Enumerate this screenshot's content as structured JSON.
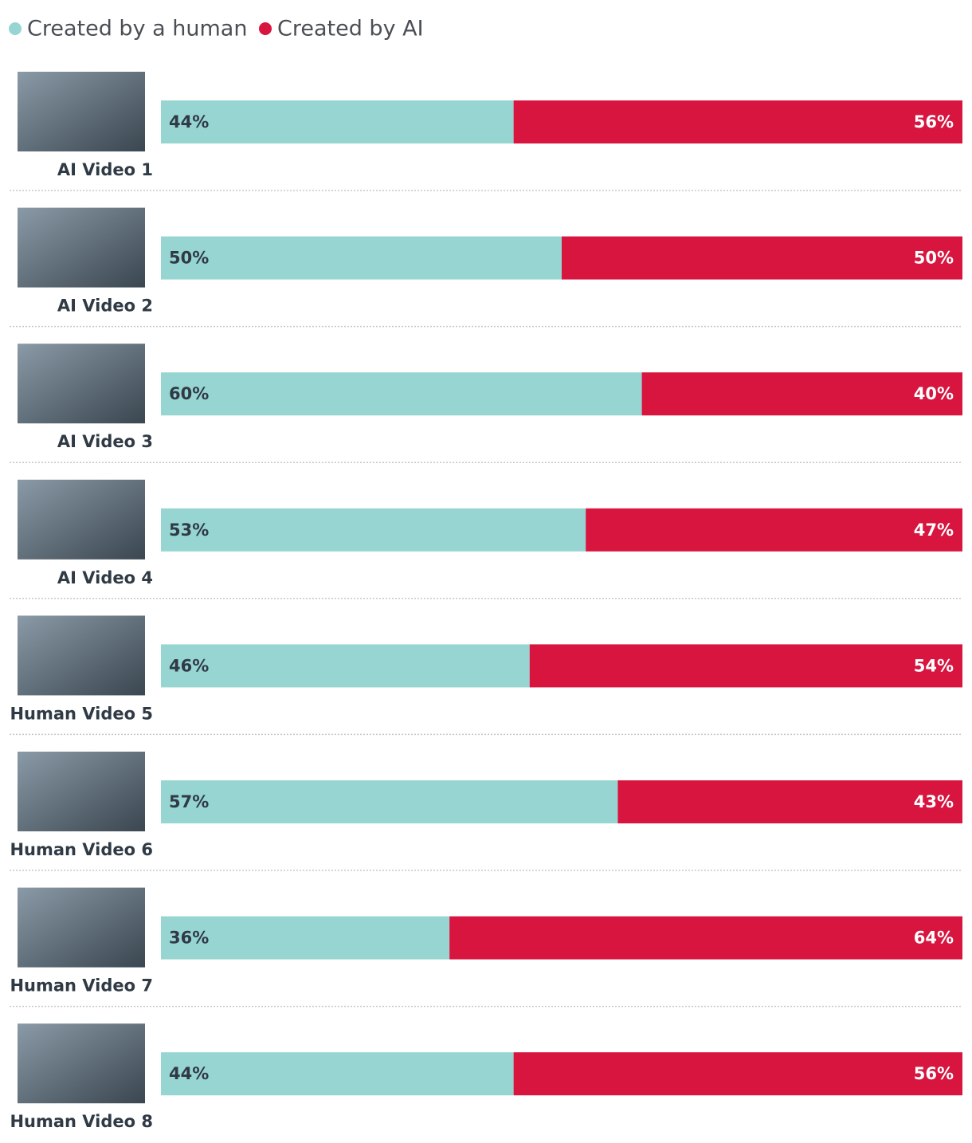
{
  "chart_data": {
    "type": "stacked-bar-horizontal",
    "categories": [
      "AI Video 1",
      "AI Video 2",
      "AI Video 3",
      "AI Video 4",
      "Human Video 5",
      "Human Video 6",
      "Human Video 7",
      "Human Video 8"
    ],
    "series": [
      {
        "name": "Created by a human",
        "color": "#97d5d2",
        "values": [
          44,
          50,
          60,
          53,
          46,
          57,
          36,
          44
        ],
        "value_labels": [
          "44%",
          "50%",
          "60%",
          "53%",
          "46%",
          "57%",
          "36%",
          "44%"
        ]
      },
      {
        "name": "Created by AI",
        "color": "#d7153f",
        "values": [
          56,
          50,
          40,
          47,
          54,
          43,
          64,
          56
        ],
        "value_labels": [
          "56%",
          "50%",
          "40%",
          "47%",
          "54%",
          "43%",
          "64%",
          "56%"
        ]
      }
    ],
    "xlim": [
      0,
      100
    ]
  }
}
